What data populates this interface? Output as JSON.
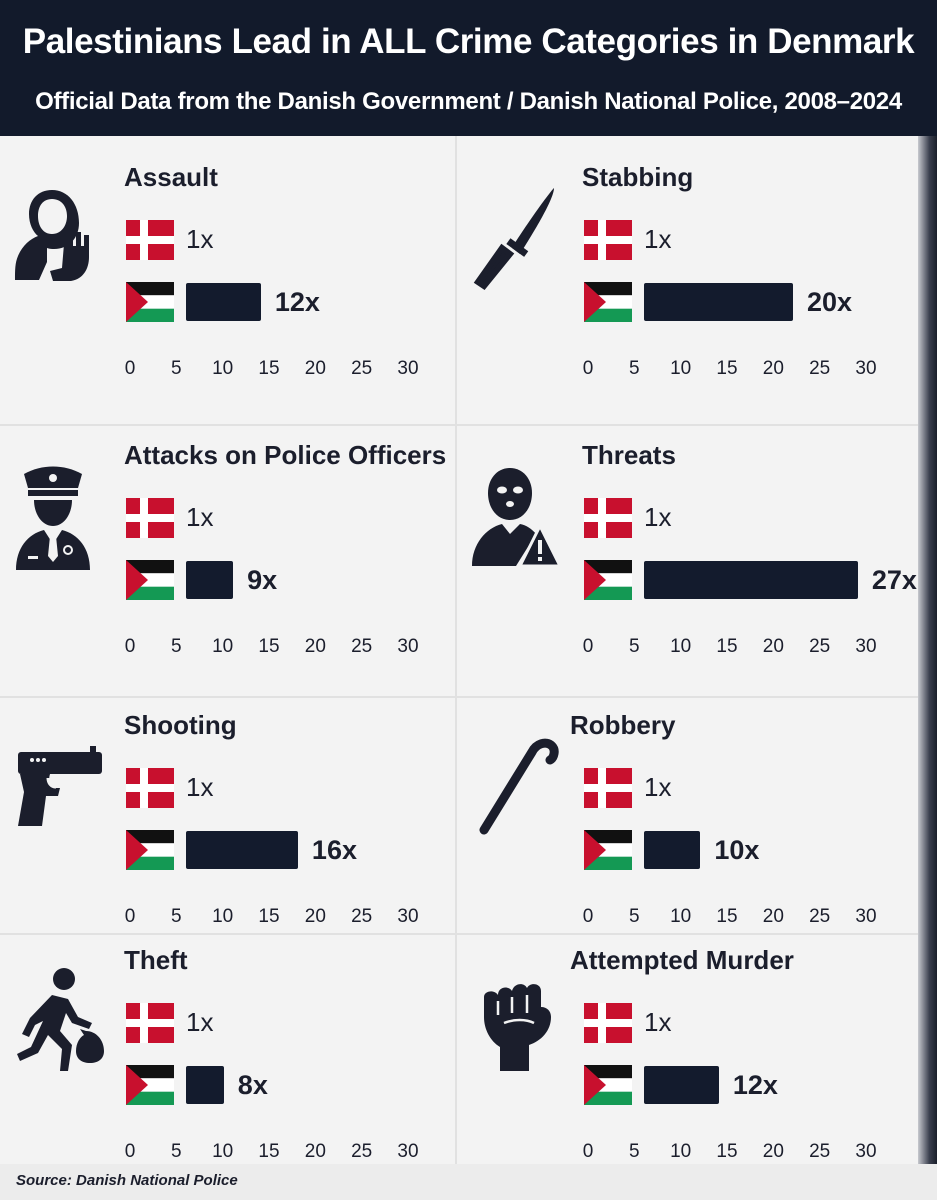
{
  "header": {
    "title": "Palestinians Lead in ALL Crime Categories in Denmark",
    "subtitle": "Official Data from the Danish Government / Danish National Police, 2008–2024"
  },
  "footer": {
    "source": "Source: Danish National Police"
  },
  "colors": {
    "header_bg": "#121a2b",
    "bar": "#131b2d",
    "denmark_red": "#c8102e",
    "palestine_green": "#149954"
  },
  "chart_data": {
    "type": "bar",
    "xlim": [
      0,
      30
    ],
    "ticks": [
      "0",
      "5",
      "10",
      "15",
      "20",
      "25",
      "30"
    ],
    "panels": [
      {
        "title": "Assault",
        "icon": "hand-stop-person-icon",
        "denmark": 1,
        "denmark_label": "1x",
        "palestine": 12,
        "palestine_label": "12x"
      },
      {
        "title": "Stabbing",
        "icon": "knife-icon",
        "denmark": 1,
        "denmark_label": "1x",
        "palestine": 20,
        "palestine_label": "20x"
      },
      {
        "title": "Attacks on Police Officers",
        "icon": "police-officer-icon",
        "denmark": 1,
        "denmark_label": "1x",
        "palestine": 9,
        "palestine_label": "9x"
      },
      {
        "title": "Threats",
        "icon": "masked-person-warning-icon",
        "denmark": 1,
        "denmark_label": "1x",
        "palestine": 27,
        "palestine_label": "27x"
      },
      {
        "title": "Shooting",
        "icon": "pistol-icon",
        "denmark": 1,
        "denmark_label": "1x",
        "palestine": 16,
        "palestine_label": "16x"
      },
      {
        "title": "Robbery",
        "icon": "crowbar-icon",
        "denmark": 1,
        "denmark_label": "1x",
        "palestine": 10,
        "palestine_label": "10x"
      },
      {
        "title": "Theft",
        "icon": "running-thief-icon",
        "denmark": 1,
        "denmark_label": "1x",
        "palestine": 8,
        "palestine_label": "8x"
      },
      {
        "title": "Attempted Murder",
        "icon": "fist-icon",
        "denmark": 1,
        "denmark_label": "1x",
        "palestine": 12,
        "palestine_label": "12x"
      }
    ]
  }
}
